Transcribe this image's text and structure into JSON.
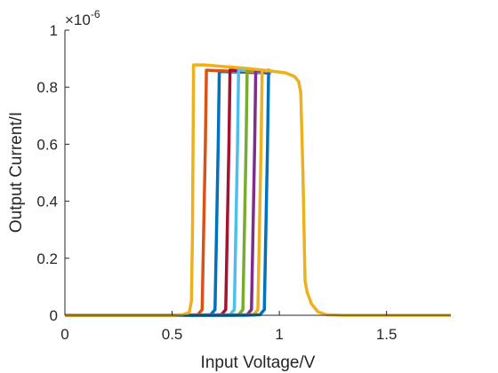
{
  "chart_data": {
    "type": "line",
    "xlabel": "Input Voltage/V",
    "ylabel": "Output Current/I",
    "y_exponent_prefix": "×10",
    "y_exponent_power": "-6",
    "xlim": [
      0,
      1.8
    ],
    "ylim": [
      0,
      1
    ],
    "x_ticks": [
      0,
      0.5,
      1,
      1.5
    ],
    "x_tick_labels": [
      "0",
      "0.5",
      "1",
      "1.5"
    ],
    "y_ticks": [
      0,
      0.2,
      0.4,
      0.6,
      0.8,
      1
    ],
    "y_tick_labels": [
      "0",
      "0.2",
      "0.4",
      "0.6",
      "0.8",
      "1"
    ],
    "grid": false,
    "legend": "none",
    "x_scale": "linear",
    "y_scale": "linear",
    "series": [
      {
        "color": "#0072BD",
        "points": [
          [
            0,
            0
          ],
          [
            0.6,
            0
          ],
          [
            0.68,
            0.002
          ],
          [
            0.7,
            0.02
          ],
          [
            0.715,
            0.6
          ],
          [
            0.72,
            0.855
          ],
          [
            0.95,
            0.85
          ],
          [
            0.96,
            0.85
          ]
        ]
      },
      {
        "color": "#D95319",
        "points": [
          [
            0,
            0
          ],
          [
            0.56,
            0
          ],
          [
            0.62,
            0.002
          ],
          [
            0.64,
            0.02
          ],
          [
            0.655,
            0.6
          ],
          [
            0.66,
            0.86
          ],
          [
            0.95,
            0.85
          ],
          [
            0.96,
            0.85
          ]
        ]
      },
      {
        "color": "#A2142F",
        "points": [
          [
            0,
            0
          ],
          [
            0.66,
            0
          ],
          [
            0.73,
            0.002
          ],
          [
            0.75,
            0.02
          ],
          [
            0.765,
            0.6
          ],
          [
            0.77,
            0.86
          ],
          [
            0.95,
            0.85
          ],
          [
            0.96,
            0.85
          ]
        ]
      },
      {
        "color": "#4DBEEE",
        "points": [
          [
            0,
            0
          ],
          [
            0.7,
            0
          ],
          [
            0.77,
            0.002
          ],
          [
            0.79,
            0.02
          ],
          [
            0.805,
            0.6
          ],
          [
            0.81,
            0.86
          ],
          [
            0.95,
            0.85
          ],
          [
            0.96,
            0.85
          ]
        ]
      },
      {
        "color": "#77AC30",
        "points": [
          [
            0,
            0
          ],
          [
            0.74,
            0
          ],
          [
            0.81,
            0.002
          ],
          [
            0.83,
            0.02
          ],
          [
            0.845,
            0.6
          ],
          [
            0.85,
            0.86
          ],
          [
            0.95,
            0.85
          ],
          [
            0.96,
            0.85
          ]
        ]
      },
      {
        "color": "#7E2F8E",
        "points": [
          [
            0,
            0
          ],
          [
            0.78,
            0
          ],
          [
            0.85,
            0.002
          ],
          [
            0.87,
            0.02
          ],
          [
            0.885,
            0.6
          ],
          [
            0.89,
            0.86
          ],
          [
            0.95,
            0.85
          ],
          [
            0.96,
            0.85
          ]
        ]
      },
      {
        "color": "#EDB120",
        "points": [
          [
            0,
            0
          ],
          [
            0.81,
            0
          ],
          [
            0.88,
            0.002
          ],
          [
            0.9,
            0.02
          ],
          [
            0.915,
            0.6
          ],
          [
            0.92,
            0.86
          ],
          [
            0.95,
            0.855
          ],
          [
            0.96,
            0.85
          ]
        ]
      },
      {
        "color": "#0072BD",
        "points": [
          [
            0,
            0
          ],
          [
            0.84,
            0
          ],
          [
            0.91,
            0.002
          ],
          [
            0.93,
            0.02
          ],
          [
            0.945,
            0.6
          ],
          [
            0.95,
            0.86
          ],
          [
            0.96,
            0.85
          ]
        ]
      },
      {
        "color": "#EDB120",
        "points": [
          [
            0,
            0
          ],
          [
            0.5,
            0
          ],
          [
            0.55,
            0.002
          ],
          [
            0.58,
            0.01
          ],
          [
            0.59,
            0.05
          ],
          [
            0.595,
            0.3
          ],
          [
            0.6,
            0.878
          ],
          [
            0.65,
            0.878
          ],
          [
            0.75,
            0.872
          ],
          [
            0.85,
            0.866
          ],
          [
            0.95,
            0.858
          ],
          [
            1.03,
            0.85
          ],
          [
            1.07,
            0.838
          ],
          [
            1.09,
            0.82
          ],
          [
            1.1,
            0.78
          ],
          [
            1.11,
            0.5
          ],
          [
            1.12,
            0.12
          ],
          [
            1.13,
            0.08
          ],
          [
            1.15,
            0.04
          ],
          [
            1.18,
            0.012
          ],
          [
            1.22,
            0.002
          ],
          [
            1.3,
            0
          ],
          [
            1.8,
            0
          ]
        ]
      }
    ]
  }
}
